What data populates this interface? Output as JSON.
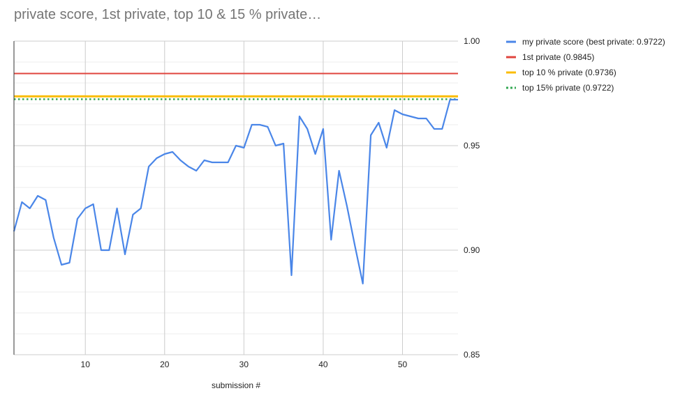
{
  "chart_data": {
    "type": "line",
    "title": "private score, 1st private, top 10 & 15 % private…",
    "xlabel": "submission #",
    "ylabel": "",
    "xlim": [
      1,
      57
    ],
    "ylim": [
      0.85,
      1.0
    ],
    "x_ticks": [
      10,
      20,
      30,
      40,
      50
    ],
    "y_ticks": [
      0.85,
      0.9,
      0.95,
      1.0
    ],
    "y_tick_labels": [
      "0.85",
      "0.90",
      "0.95",
      "1.00"
    ],
    "y_axis_side": "right",
    "grid": true,
    "legend_position": "top-right",
    "series": [
      {
        "name": "my private score (best private: 0.9722)",
        "color": "#4a86e8",
        "style": "solid",
        "x": [
          1,
          2,
          3,
          4,
          5,
          6,
          7,
          8,
          9,
          10,
          11,
          12,
          13,
          14,
          15,
          16,
          17,
          18,
          19,
          20,
          21,
          22,
          23,
          24,
          25,
          26,
          27,
          28,
          29,
          30,
          31,
          32,
          33,
          34,
          35,
          36,
          37,
          38,
          39,
          40,
          41,
          42,
          43,
          44,
          45,
          46,
          47,
          48,
          49,
          50,
          51,
          52,
          53,
          54,
          55,
          56,
          57
        ],
        "values": [
          0.909,
          0.923,
          0.92,
          0.926,
          0.924,
          0.906,
          0.893,
          0.894,
          0.915,
          0.92,
          0.922,
          0.9,
          0.9,
          0.92,
          0.898,
          0.917,
          0.92,
          0.94,
          0.944,
          0.946,
          0.947,
          0.943,
          0.94,
          0.938,
          0.943,
          0.942,
          0.942,
          0.942,
          0.95,
          0.949,
          0.96,
          0.96,
          0.959,
          0.95,
          0.951,
          0.888,
          0.964,
          0.958,
          0.946,
          0.958,
          0.905,
          0.938,
          0.921,
          0.902,
          0.884,
          0.955,
          0.961,
          0.949,
          0.967,
          0.965,
          0.964,
          0.963,
          0.963,
          0.958,
          0.958,
          0.972,
          0.972
        ]
      },
      {
        "name": "1st private (0.9845)",
        "color": "#e0443e",
        "style": "solid",
        "constant": 0.9845
      },
      {
        "name": "top 10 % private (0.9736)",
        "color": "#fbbc04",
        "style": "solid",
        "constant": 0.9736
      },
      {
        "name": "top 15% private (0.9722)",
        "color": "#34a853",
        "style": "dotted",
        "constant": 0.9722
      }
    ]
  }
}
